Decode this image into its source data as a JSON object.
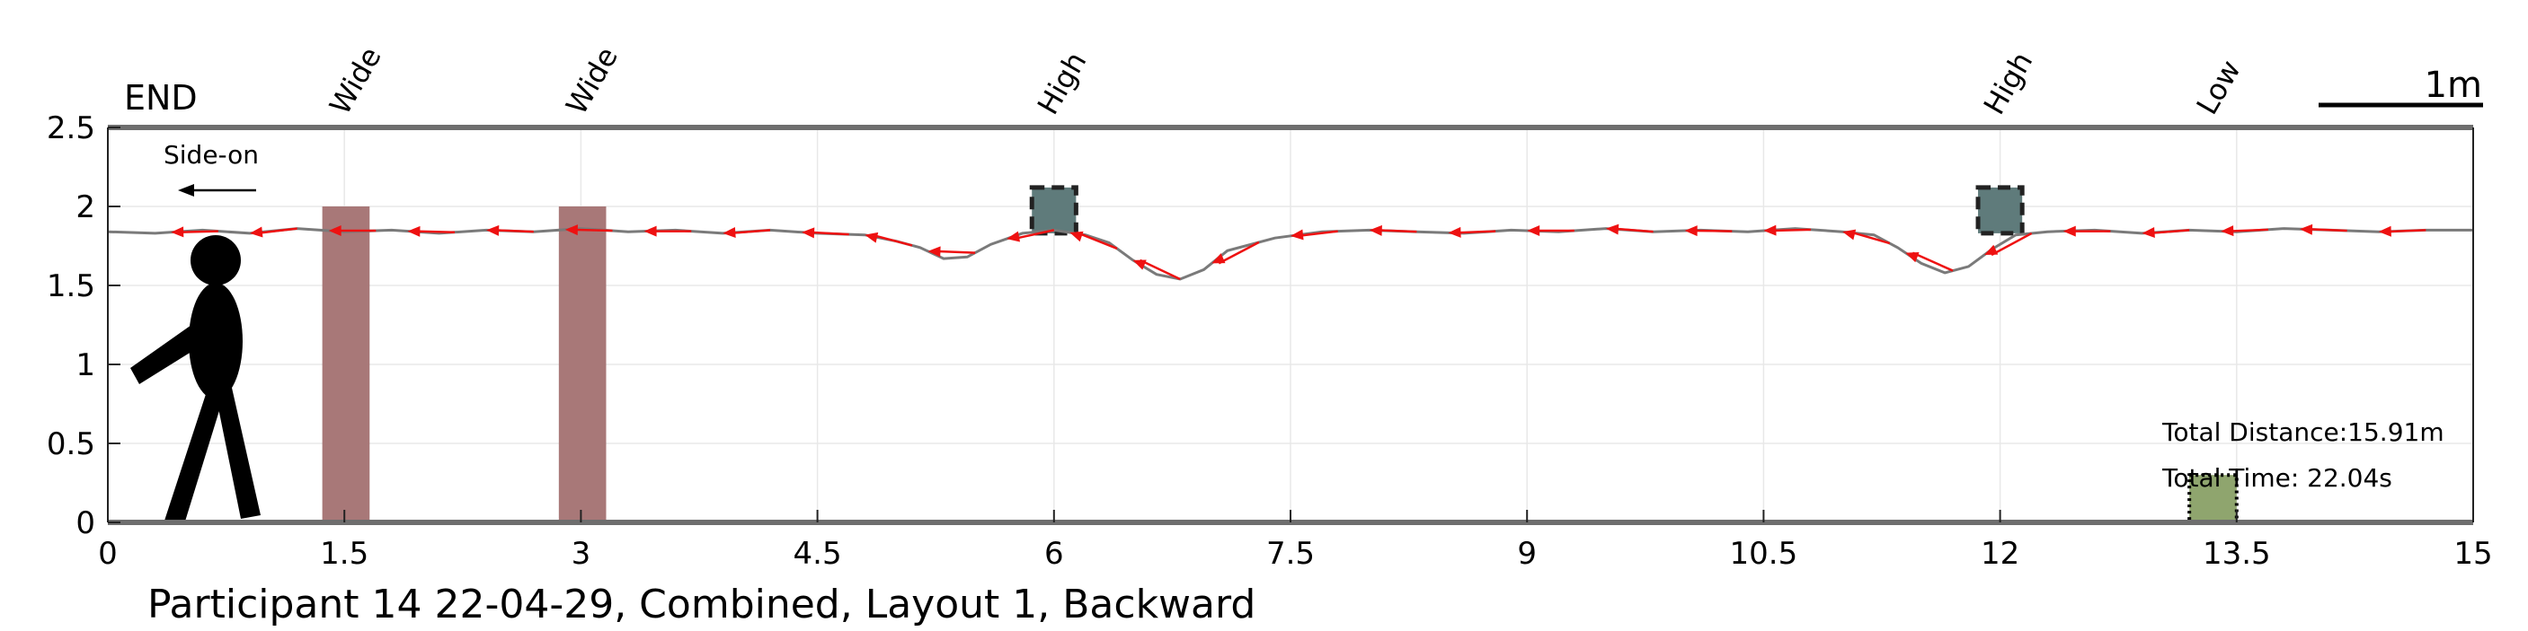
{
  "chart_data": {
    "type": "line",
    "caption": "Participant 14 22-04-29, Combined, Layout 1, Backward",
    "end_label": "END",
    "scale_bar_label": "1m",
    "side_on_label": "Side-on",
    "xlim": [
      0,
      15
    ],
    "ylim": [
      0,
      2.5
    ],
    "x_ticks": [
      0,
      1.5,
      3,
      4.5,
      6,
      7.5,
      9,
      10.5,
      12,
      13.5,
      15
    ],
    "x_tick_labels": [
      "0",
      "1.5",
      "3",
      "4.5",
      "6",
      "7.5",
      "9",
      "10.5",
      "12",
      "13.5",
      "15"
    ],
    "y_ticks": [
      0,
      0.5,
      1,
      1.5,
      2,
      2.5
    ],
    "y_tick_labels": [
      "0",
      "0.5",
      "1",
      "1.5",
      "2",
      "2.5"
    ],
    "grid": true,
    "obstacles": [
      {
        "label": "Wide",
        "kind": "bar",
        "x0": 1.36,
        "x1": 1.66,
        "y0": 0,
        "y1": 2.0
      },
      {
        "label": "Wide",
        "kind": "bar",
        "x0": 2.86,
        "x1": 3.16,
        "y0": 0,
        "y1": 2.0
      },
      {
        "label": "High",
        "kind": "box",
        "x0": 5.86,
        "x1": 6.14,
        "y0": 1.83,
        "y1": 2.12
      },
      {
        "label": "High",
        "kind": "box",
        "x0": 11.86,
        "x1": 12.14,
        "y0": 1.83,
        "y1": 2.12
      },
      {
        "label": "Low",
        "kind": "floor",
        "x0": 13.2,
        "x1": 13.5,
        "y0": 0,
        "y1": 0.3
      }
    ],
    "series": [
      {
        "x": [
          0,
          0.3,
          0.6,
          0.9,
          1.2,
          1.5,
          1.8,
          2.1,
          2.4,
          2.7,
          3.0,
          3.3,
          3.6,
          3.9,
          4.2,
          4.5,
          4.8,
          5.0,
          5.15,
          5.3,
          5.45,
          5.6,
          5.8,
          6.0,
          6.2,
          6.35,
          6.5,
          6.65,
          6.8,
          6.95,
          7.1,
          7.4,
          7.7,
          8.0,
          8.3,
          8.6,
          8.9,
          9.2,
          9.5,
          9.8,
          10.1,
          10.4,
          10.7,
          11.0,
          11.2,
          11.35,
          11.5,
          11.65,
          11.8,
          11.95,
          12.1,
          12.3,
          12.6,
          12.9,
          13.2,
          13.5,
          13.8,
          14.1,
          14.4,
          14.7,
          15.0
        ],
        "y": [
          1.84,
          1.83,
          1.85,
          1.83,
          1.86,
          1.84,
          1.85,
          1.83,
          1.85,
          1.84,
          1.86,
          1.84,
          1.85,
          1.83,
          1.85,
          1.83,
          1.82,
          1.78,
          1.74,
          1.67,
          1.68,
          1.76,
          1.83,
          1.85,
          1.82,
          1.77,
          1.66,
          1.57,
          1.54,
          1.6,
          1.72,
          1.8,
          1.84,
          1.85,
          1.84,
          1.83,
          1.85,
          1.84,
          1.86,
          1.84,
          1.85,
          1.84,
          1.86,
          1.84,
          1.82,
          1.74,
          1.64,
          1.58,
          1.62,
          1.73,
          1.82,
          1.84,
          1.85,
          1.83,
          1.85,
          1.84,
          1.86,
          1.85,
          1.84,
          1.85,
          1.85
        ]
      }
    ],
    "direction_arrows_x": [
      0.7,
      1.2,
      1.7,
      2.2,
      2.7,
      3.2,
      3.7,
      4.2,
      4.7,
      5.1,
      5.5,
      6.0,
      6.4,
      6.8,
      7.3,
      7.8,
      8.3,
      8.8,
      9.3,
      9.8,
      10.3,
      10.8,
      11.3,
      11.7,
      12.2,
      12.7,
      13.2,
      13.7,
      14.2,
      14.7
    ],
    "annotations": {
      "total_distance": "Total Distance:15.91m",
      "total_time": "Total Time: 22.04s"
    }
  }
}
